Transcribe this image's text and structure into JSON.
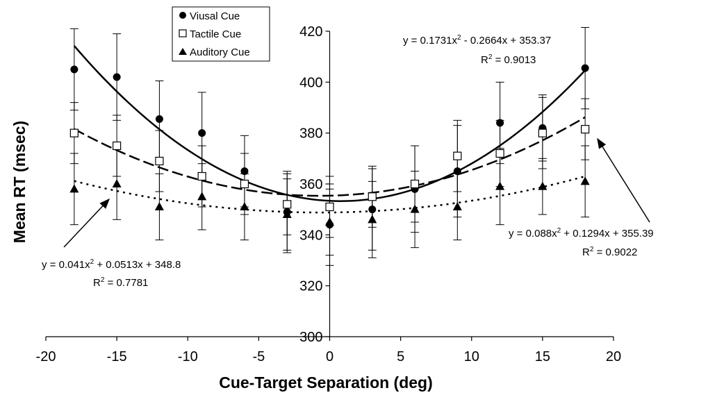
{
  "chart_data": {
    "type": "scatter",
    "xlabel": "Cue-Target Separation (deg)",
    "ylabel": "Mean RT (msec)",
    "xlim": [
      -20,
      20
    ],
    "ylim": [
      300,
      420
    ],
    "x_ticks": [
      "-20",
      "-15",
      "-10",
      "-5",
      "0",
      "5",
      "10",
      "15",
      "20"
    ],
    "y_ticks": [
      "300",
      "320",
      "340",
      "360",
      "380",
      "400",
      "420"
    ],
    "grid": false,
    "legend_position": "top-left",
    "x": [
      -18,
      -15,
      -12,
      -9,
      -6,
      -3,
      0,
      3,
      6,
      9,
      12,
      15,
      18
    ],
    "series": [
      {
        "name": "Viusal Cue",
        "marker": "circle",
        "trendline": "solid",
        "values": [
          405,
          402,
          385.5,
          380,
          365,
          349,
          344,
          350,
          358,
          365,
          384,
          382,
          405.5
        ],
        "error": [
          16,
          17,
          15,
          16,
          14,
          16,
          16,
          16,
          17,
          18,
          16,
          13,
          16
        ]
      },
      {
        "name": "Tactile Cue",
        "marker": "square",
        "trendline": "long-dash",
        "values": [
          380,
          375,
          369,
          363,
          360,
          352,
          351,
          355,
          360,
          371,
          372,
          380,
          381.5
        ],
        "error": [
          12,
          12,
          12,
          12,
          12,
          12,
          12,
          12,
          15,
          14,
          13,
          14,
          12
        ]
      },
      {
        "name": "Auditory Cue",
        "marker": "triangle",
        "trendline": "dotted",
        "values": [
          358,
          360,
          351,
          355,
          351,
          348,
          345,
          346,
          350,
          351,
          359,
          359,
          361
        ],
        "error": [
          14,
          14,
          13,
          13,
          13,
          14,
          13,
          15,
          15,
          13,
          15,
          11,
          14
        ]
      }
    ],
    "annotations": [
      {
        "line1": "y = 0.1731x",
        "sup": "2",
        "line1_rest": " - 0.2664x + 353.37",
        "r_label": "R",
        "r_value": " = 0.9013"
      },
      {
        "line1": "y = 0.041x",
        "sup": "2",
        "line1_rest": " + 0.0513x + 348.8",
        "r_label": "R",
        "r_value": " = 0.7781"
      },
      {
        "line1": "y = 0.088x",
        "sup": "2",
        "line1_rest": " + 0.1294x + 355.39",
        "r_label": "R",
        "r_value": " = 0.9022"
      }
    ],
    "trend_coefficients": [
      {
        "series": "Viusal Cue",
        "a": 0.1731,
        "b": -0.2664,
        "c": 353.37
      },
      {
        "series": "Tactile Cue",
        "a": 0.088,
        "b": 0.1294,
        "c": 355.39
      },
      {
        "series": "Auditory Cue",
        "a": 0.041,
        "b": 0.0513,
        "c": 348.8
      }
    ]
  }
}
